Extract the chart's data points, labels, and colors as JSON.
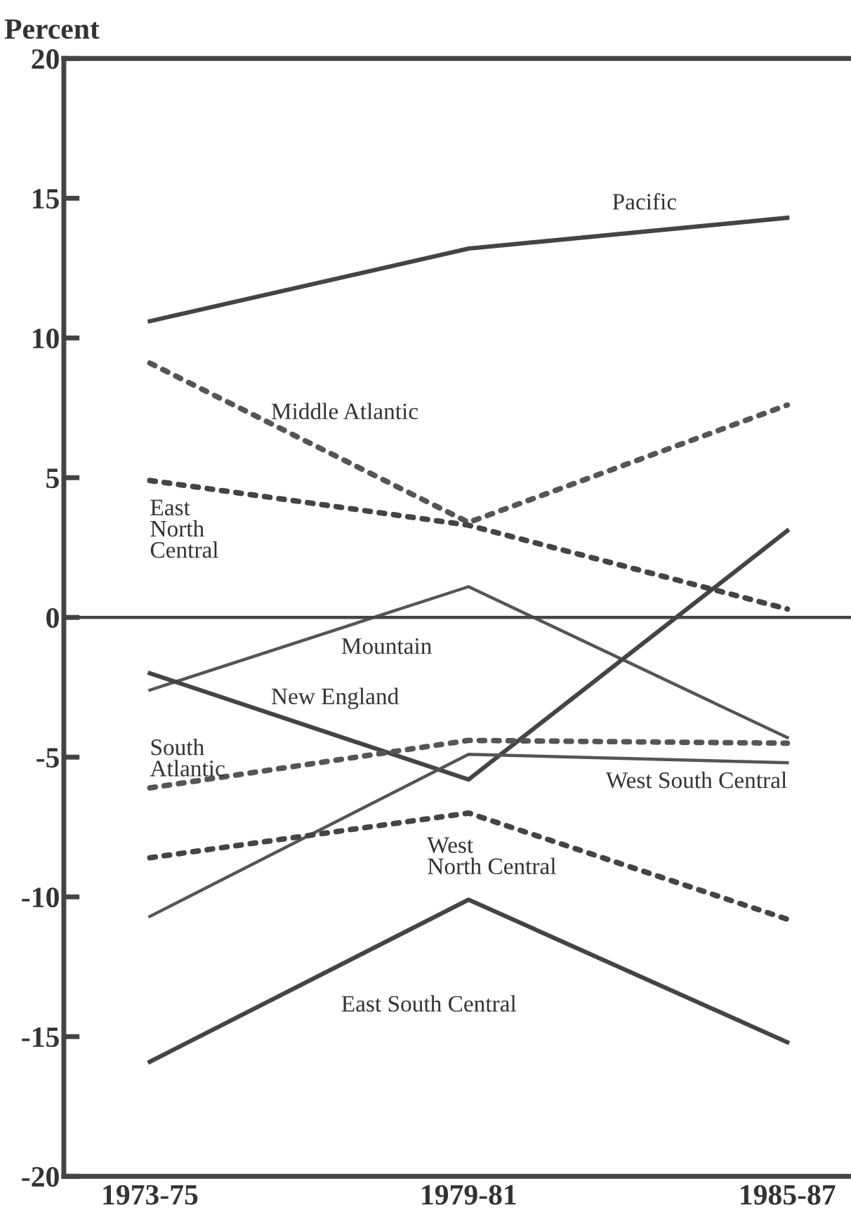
{
  "chart_data": {
    "type": "line",
    "ylabel": "Percent",
    "categories": [
      "1973-75",
      "1979-81",
      "1985-87"
    ],
    "ylim": [
      -20,
      20
    ],
    "yticks": [
      -20,
      -15,
      -10,
      -5,
      0,
      5,
      10,
      15,
      20
    ],
    "grid": false,
    "legend": false,
    "marker": "none",
    "ref_lines": [
      {
        "axis": "y",
        "value": 0,
        "color": "#444444",
        "line_style": "solid"
      }
    ],
    "series": [
      {
        "name": "Pacific",
        "color": "#444444",
        "line_style": "solid",
        "values": [
          10.6,
          13.2,
          14.3
        ]
      },
      {
        "name": "Middle Atlantic",
        "color": "#555555",
        "line_style": "dotted",
        "values": [
          9.1,
          3.4,
          7.6
        ]
      },
      {
        "name": "East\nNorth\nCentral",
        "color": "#444444",
        "line_style": "dotted",
        "values": [
          4.9,
          3.3,
          0.3
        ]
      },
      {
        "name": "Mountain",
        "color": "#555555",
        "line_style": "solid",
        "values": [
          -2.6,
          1.1,
          -4.3
        ]
      },
      {
        "name": "New England",
        "color": "#444444",
        "line_style": "solid",
        "values": [
          -2.0,
          -5.8,
          3.1
        ]
      },
      {
        "name": "South\nAtlantic",
        "color": "#555555",
        "line_style": "dotted",
        "values": [
          -6.1,
          -4.4,
          -4.5
        ]
      },
      {
        "name": "West South Central",
        "color": "#555555",
        "line_style": "solid",
        "values": [
          -10.7,
          -4.9,
          -5.2
        ]
      },
      {
        "name": "West\nNorth Central",
        "color": "#444444",
        "line_style": "dotted",
        "values": [
          -8.6,
          -7.0,
          -10.8
        ]
      },
      {
        "name": "East South Central",
        "color": "#444444",
        "line_style": "solid",
        "values": [
          -15.9,
          -10.1,
          -15.2
        ]
      }
    ]
  }
}
